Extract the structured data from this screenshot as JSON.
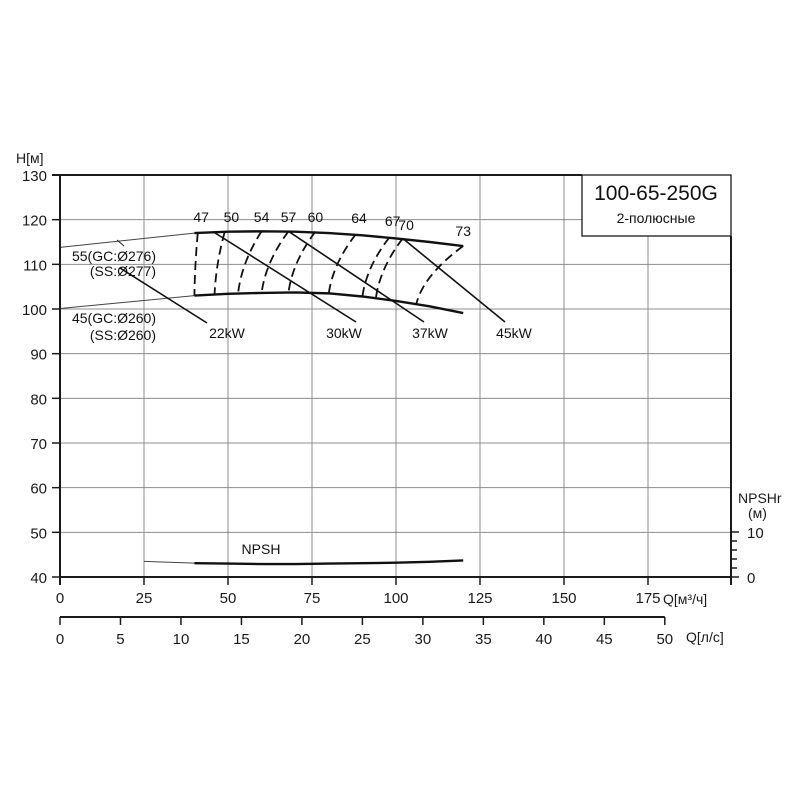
{
  "chart_data": {
    "type": "line",
    "title": "100-65-250G",
    "subtitle": "2-полюсные",
    "ylabel": "H[м]",
    "xlabel": "Q[м³/ч]",
    "x2label": "Q[л/с]",
    "y2label_line1": "NPSHr",
    "y2label_line2": "(м)",
    "ylim": [
      40,
      130
    ],
    "xlim": [
      0,
      200
    ],
    "x2lim": [
      0,
      50
    ],
    "y2lim": [
      0,
      10
    ],
    "grid": true,
    "y_ticks": [
      "130",
      "120",
      "110",
      "100",
      "90",
      "80",
      "70",
      "60",
      "50",
      "40"
    ],
    "y_tick_values": [
      130,
      120,
      110,
      100,
      90,
      80,
      70,
      60,
      50,
      40
    ],
    "x_ticks": [
      "0",
      "25",
      "50",
      "75",
      "100",
      "125",
      "150",
      "175"
    ],
    "x_tick_values": [
      0,
      25,
      50,
      75,
      100,
      125,
      150,
      175
    ],
    "x2_ticks": [
      "0",
      "5",
      "10",
      "15",
      "20",
      "25",
      "30",
      "35",
      "40",
      "45",
      "50"
    ],
    "x2_tick_values": [
      0,
      5,
      10,
      15,
      20,
      25,
      30,
      35,
      40,
      45,
      50
    ],
    "y2_ticks": [
      "10",
      "0"
    ],
    "y2_tick_values": [
      10,
      0
    ],
    "series": [
      {
        "name": "55(GC:Ø276) (SS:Ø277)",
        "label_line1": "55(GC:Ø276)",
        "label_line2": "(SS:Ø277)",
        "x_ext": [
          0,
          40
        ],
        "y_ext": [
          113.8,
          117.0
        ],
        "x": [
          40,
          50,
          60,
          70,
          80,
          90,
          100,
          110,
          120
        ],
        "y": [
          117.0,
          117.3,
          117.4,
          117.3,
          117.0,
          116.5,
          115.8,
          115.0,
          114.1
        ]
      },
      {
        "name": "45(GC:Ø260) (SS:Ø260)",
        "label_line1": "45(GC:Ø260)",
        "label_line2": "(SS:Ø260)",
        "x_ext": [
          0,
          40
        ],
        "y_ext": [
          100.1,
          103.0
        ],
        "x": [
          40,
          50,
          60,
          70,
          80,
          90,
          100,
          110,
          120
        ],
        "y": [
          103.0,
          103.4,
          103.6,
          103.7,
          103.5,
          102.8,
          101.8,
          100.6,
          99.1
        ]
      },
      {
        "name": "NPSH",
        "axis": "npsh",
        "x_ext": [
          25,
          40
        ],
        "y_ext": [
          43.5,
          43.1
        ],
        "x": [
          40,
          50,
          60,
          70,
          80,
          90,
          100,
          110,
          120
        ],
        "y": [
          43.1,
          43.0,
          42.9,
          42.9,
          43.0,
          43.1,
          43.2,
          43.4,
          43.7
        ]
      }
    ],
    "efficiency_lines": [
      {
        "label": "47",
        "top": [
          41,
          117.0
        ],
        "bottom": [
          40,
          103.0
        ],
        "label_pos": [
          42,
          119.5
        ]
      },
      {
        "label": "50",
        "top": [
          49,
          117.2
        ],
        "bottom": [
          46,
          103.3
        ],
        "label_pos": [
          51,
          119.5
        ]
      },
      {
        "label": "54",
        "top": [
          60,
          117.4
        ],
        "bottom": [
          53,
          103.5
        ],
        "label_pos": [
          60,
          119.5
        ]
      },
      {
        "label": "57",
        "top": [
          68,
          117.4
        ],
        "bottom": [
          60,
          103.6
        ],
        "label_pos": [
          68,
          119.5
        ]
      },
      {
        "label": "60",
        "top": [
          76,
          117.3
        ],
        "bottom": [
          68,
          103.7
        ],
        "label_pos": [
          76,
          119.5
        ]
      },
      {
        "label": "64",
        "top": [
          88,
          116.7
        ],
        "bottom": [
          80,
          103.5
        ],
        "label_pos": [
          89,
          119.3
        ]
      },
      {
        "label": "67",
        "top": [
          98,
          116.0
        ],
        "bottom": [
          90,
          102.8
        ],
        "label_pos": [
          99,
          118.6
        ]
      },
      {
        "label": "70",
        "top": [
          102,
          115.8
        ],
        "bottom": [
          94,
          102.4
        ],
        "label_pos": [
          103,
          117.7
        ]
      },
      {
        "label": "73",
        "top": [
          120,
          114.1
        ],
        "bottom": [
          106,
          101.0
        ],
        "label_pos": [
          120,
          116.3
        ]
      }
    ],
    "power_lines": [
      {
        "label": "22kW",
        "from": [
          0,
          115.0
        ],
        "to": [
          0,
          0
        ],
        "label_pos": [
          49,
          95.5
        ]
      },
      {
        "label": "30kW",
        "from": [
          46,
          117.1
        ],
        "to": [
          88,
          96.5
        ],
        "label_pos": [
          84,
          95.5
        ]
      },
      {
        "label": "37kW",
        "from": [
          68,
          117.4
        ],
        "to": [
          110,
          96.5
        ],
        "label_pos": [
          108,
          95.5
        ]
      },
      {
        "label": "45kW",
        "from": [
          102,
          115.8
        ],
        "to": [
          131,
          96.8
        ],
        "label_pos": [
          129,
          95.5
        ]
      }
    ]
  },
  "legend_box": {
    "title": "100-65-250G",
    "subtitle": "2-полюсные"
  },
  "colors": {
    "axis": "#1a1a1a",
    "grid": "#8c8c8c",
    "curve": "#111111",
    "background": "#ffffff"
  }
}
